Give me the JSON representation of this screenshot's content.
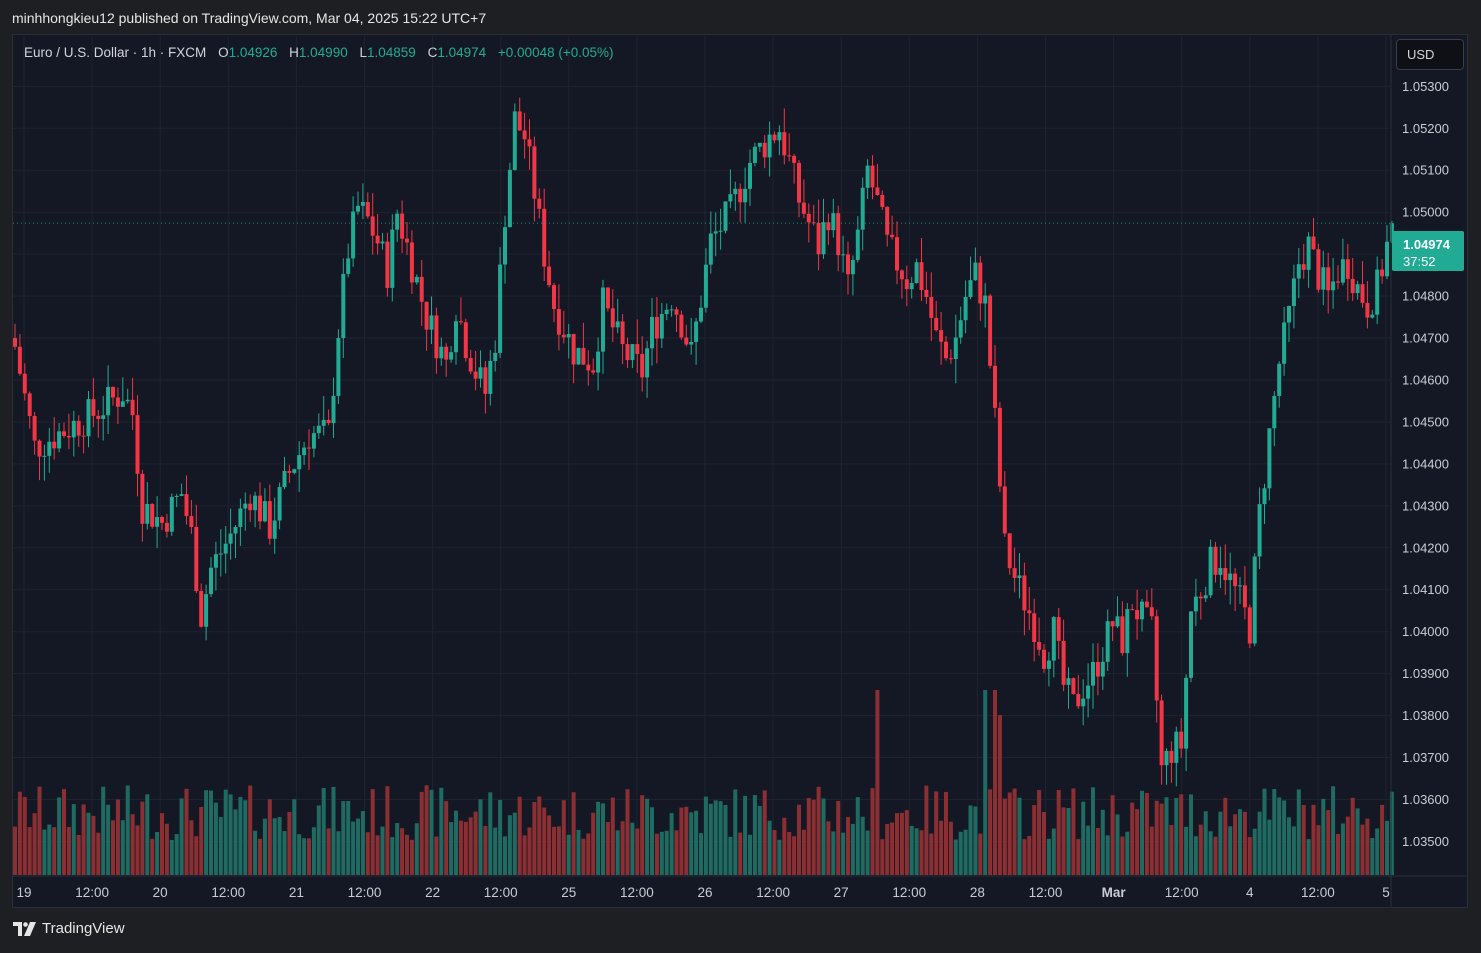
{
  "header": {
    "published": "minhhongkieu12 published on TradingView.com, Mar 04, 2025 15:22 UTC+7"
  },
  "legend": {
    "symbol": "Euro / U.S. Dollar · 1h · FXCM",
    "open_label": "O",
    "open": "1.04926",
    "high_label": "H",
    "high": "1.04990",
    "low_label": "L",
    "low": "1.04859",
    "close_label": "C",
    "close": "1.04974",
    "change": "+0.00048 (+0.05%)"
  },
  "currency_button": "USD",
  "price_badge": {
    "price": "1.04974",
    "countdown": "37:52"
  },
  "footer": {
    "brand": "TradingView"
  },
  "colors": {
    "up": "#22ab94",
    "down": "#f23645",
    "vol_up": "#1f6b62",
    "vol_down": "#8c2f33",
    "background": "#141824",
    "text": "#d1d4dc"
  },
  "chart_data": {
    "type": "candlestick",
    "symbol": "EURUSD",
    "timeframe": "1h",
    "ylim": [
      1.0342,
      1.0542
    ],
    "y_ticks": [
      "1.03500",
      "1.03600",
      "1.03700",
      "1.03800",
      "1.03900",
      "1.04000",
      "1.04100",
      "1.04200",
      "1.04300",
      "1.04400",
      "1.04500",
      "1.04600",
      "1.04700",
      "1.04800",
      "1.04900",
      "1.05000",
      "1.05100",
      "1.05200",
      "1.05300"
    ],
    "x_ticks": [
      {
        "label": "19",
        "bold": false
      },
      {
        "label": "12:00",
        "bold": false
      },
      {
        "label": "20",
        "bold": false
      },
      {
        "label": "12:00",
        "bold": false
      },
      {
        "label": "21",
        "bold": false
      },
      {
        "label": "12:00",
        "bold": false
      },
      {
        "label": "22",
        "bold": false
      },
      {
        "label": "12:00",
        "bold": false
      },
      {
        "label": "25",
        "bold": false
      },
      {
        "label": "12:00",
        "bold": false
      },
      {
        "label": "26",
        "bold": false
      },
      {
        "label": "12:00",
        "bold": false
      },
      {
        "label": "27",
        "bold": false
      },
      {
        "label": "12:00",
        "bold": false
      },
      {
        "label": "28",
        "bold": false
      },
      {
        "label": "12:00",
        "bold": false
      },
      {
        "label": "Mar",
        "bold": true
      },
      {
        "label": "12:00",
        "bold": false
      },
      {
        "label": "4",
        "bold": false
      },
      {
        "label": "12:00",
        "bold": false
      },
      {
        "label": "5",
        "bold": false
      }
    ],
    "last_price": 1.04974,
    "close_path": [
      [
        0,
        1.0468
      ],
      [
        4,
        1.0444
      ],
      [
        10,
        1.0448
      ],
      [
        16,
        1.0452
      ],
      [
        22,
        1.0457
      ],
      [
        24,
        1.0452
      ],
      [
        26,
        1.043
      ],
      [
        30,
        1.0426
      ],
      [
        34,
        1.0433
      ],
      [
        36,
        1.0423
      ],
      [
        38,
        1.0404
      ],
      [
        40,
        1.0415
      ],
      [
        44,
        1.0423
      ],
      [
        48,
        1.0433
      ],
      [
        52,
        1.0425
      ],
      [
        56,
        1.0438
      ],
      [
        60,
        1.0447
      ],
      [
        64,
        1.0447
      ],
      [
        66,
        1.0472
      ],
      [
        68,
        1.0491
      ],
      [
        70,
        1.0501
      ],
      [
        72,
        1.0498
      ],
      [
        74,
        1.0493
      ],
      [
        76,
        1.0486
      ],
      [
        78,
        1.05
      ],
      [
        80,
        1.0492
      ],
      [
        84,
        1.0475
      ],
      [
        88,
        1.0464
      ],
      [
        90,
        1.0478
      ],
      [
        92,
        1.0469
      ],
      [
        94,
        1.0462
      ],
      [
        96,
        1.0457
      ],
      [
        98,
        1.047
      ],
      [
        100,
        1.05
      ],
      [
        102,
        1.0522
      ],
      [
        104,
        1.0518
      ],
      [
        106,
        1.0505
      ],
      [
        108,
        1.049
      ],
      [
        110,
        1.0478
      ],
      [
        114,
        1.0467
      ],
      [
        118,
        1.0464
      ],
      [
        120,
        1.0478
      ],
      [
        124,
        1.0467
      ],
      [
        128,
        1.0462
      ],
      [
        130,
        1.0472
      ],
      [
        134,
        1.048
      ],
      [
        136,
        1.0474
      ],
      [
        138,
        1.0466
      ],
      [
        142,
        1.0493
      ],
      [
        146,
        1.05
      ],
      [
        150,
        1.0512
      ],
      [
        154,
        1.0518
      ],
      [
        156,
        1.052
      ],
      [
        158,
        1.0512
      ],
      [
        160,
        1.0503
      ],
      [
        164,
        1.0492
      ],
      [
        166,
        1.05
      ],
      [
        168,
        1.0493
      ],
      [
        170,
        1.0482
      ],
      [
        172,
        1.0494
      ],
      [
        174,
        1.051
      ],
      [
        176,
        1.0502
      ],
      [
        178,
        1.0492
      ],
      [
        180,
        1.0488
      ],
      [
        182,
        1.0484
      ],
      [
        184,
        1.0487
      ],
      [
        186,
        1.048
      ],
      [
        188,
        1.047
      ],
      [
        190,
        1.0465
      ],
      [
        192,
        1.047
      ],
      [
        194,
        1.048
      ],
      [
        196,
        1.0485
      ],
      [
        198,
        1.0478
      ],
      [
        200,
        1.045
      ],
      [
        202,
        1.042
      ],
      [
        204,
        1.0413
      ],
      [
        208,
        1.0402
      ],
      [
        210,
        1.0395
      ],
      [
        212,
        1.04
      ],
      [
        214,
        1.0387
      ],
      [
        216,
        1.0382
      ],
      [
        218,
        1.0387
      ],
      [
        220,
        1.039
      ],
      [
        222,
        1.0396
      ],
      [
        224,
        1.0402
      ],
      [
        226,
        1.0398
      ],
      [
        228,
        1.0407
      ],
      [
        230,
        1.0403
      ],
      [
        232,
        1.04
      ],
      [
        234,
        1.0367
      ],
      [
        236,
        1.0372
      ],
      [
        238,
        1.0373
      ],
      [
        240,
        1.0405
      ],
      [
        242,
        1.041
      ],
      [
        244,
        1.0416
      ],
      [
        246,
        1.0418
      ],
      [
        248,
        1.0412
      ],
      [
        250,
        1.0407
      ],
      [
        252,
        1.0401
      ],
      [
        254,
        1.0428
      ],
      [
        256,
        1.0447
      ],
      [
        258,
        1.0464
      ],
      [
        260,
        1.0475
      ],
      [
        262,
        1.0488
      ],
      [
        264,
        1.0492
      ],
      [
        266,
        1.0485
      ],
      [
        268,
        1.048
      ],
      [
        270,
        1.0486
      ],
      [
        272,
        1.0488
      ],
      [
        274,
        1.0482
      ],
      [
        276,
        1.0478
      ],
      [
        278,
        1.0482
      ],
      [
        280,
        1.0492
      ],
      [
        281,
        1.0497
      ]
    ],
    "total_bars": 282
  }
}
